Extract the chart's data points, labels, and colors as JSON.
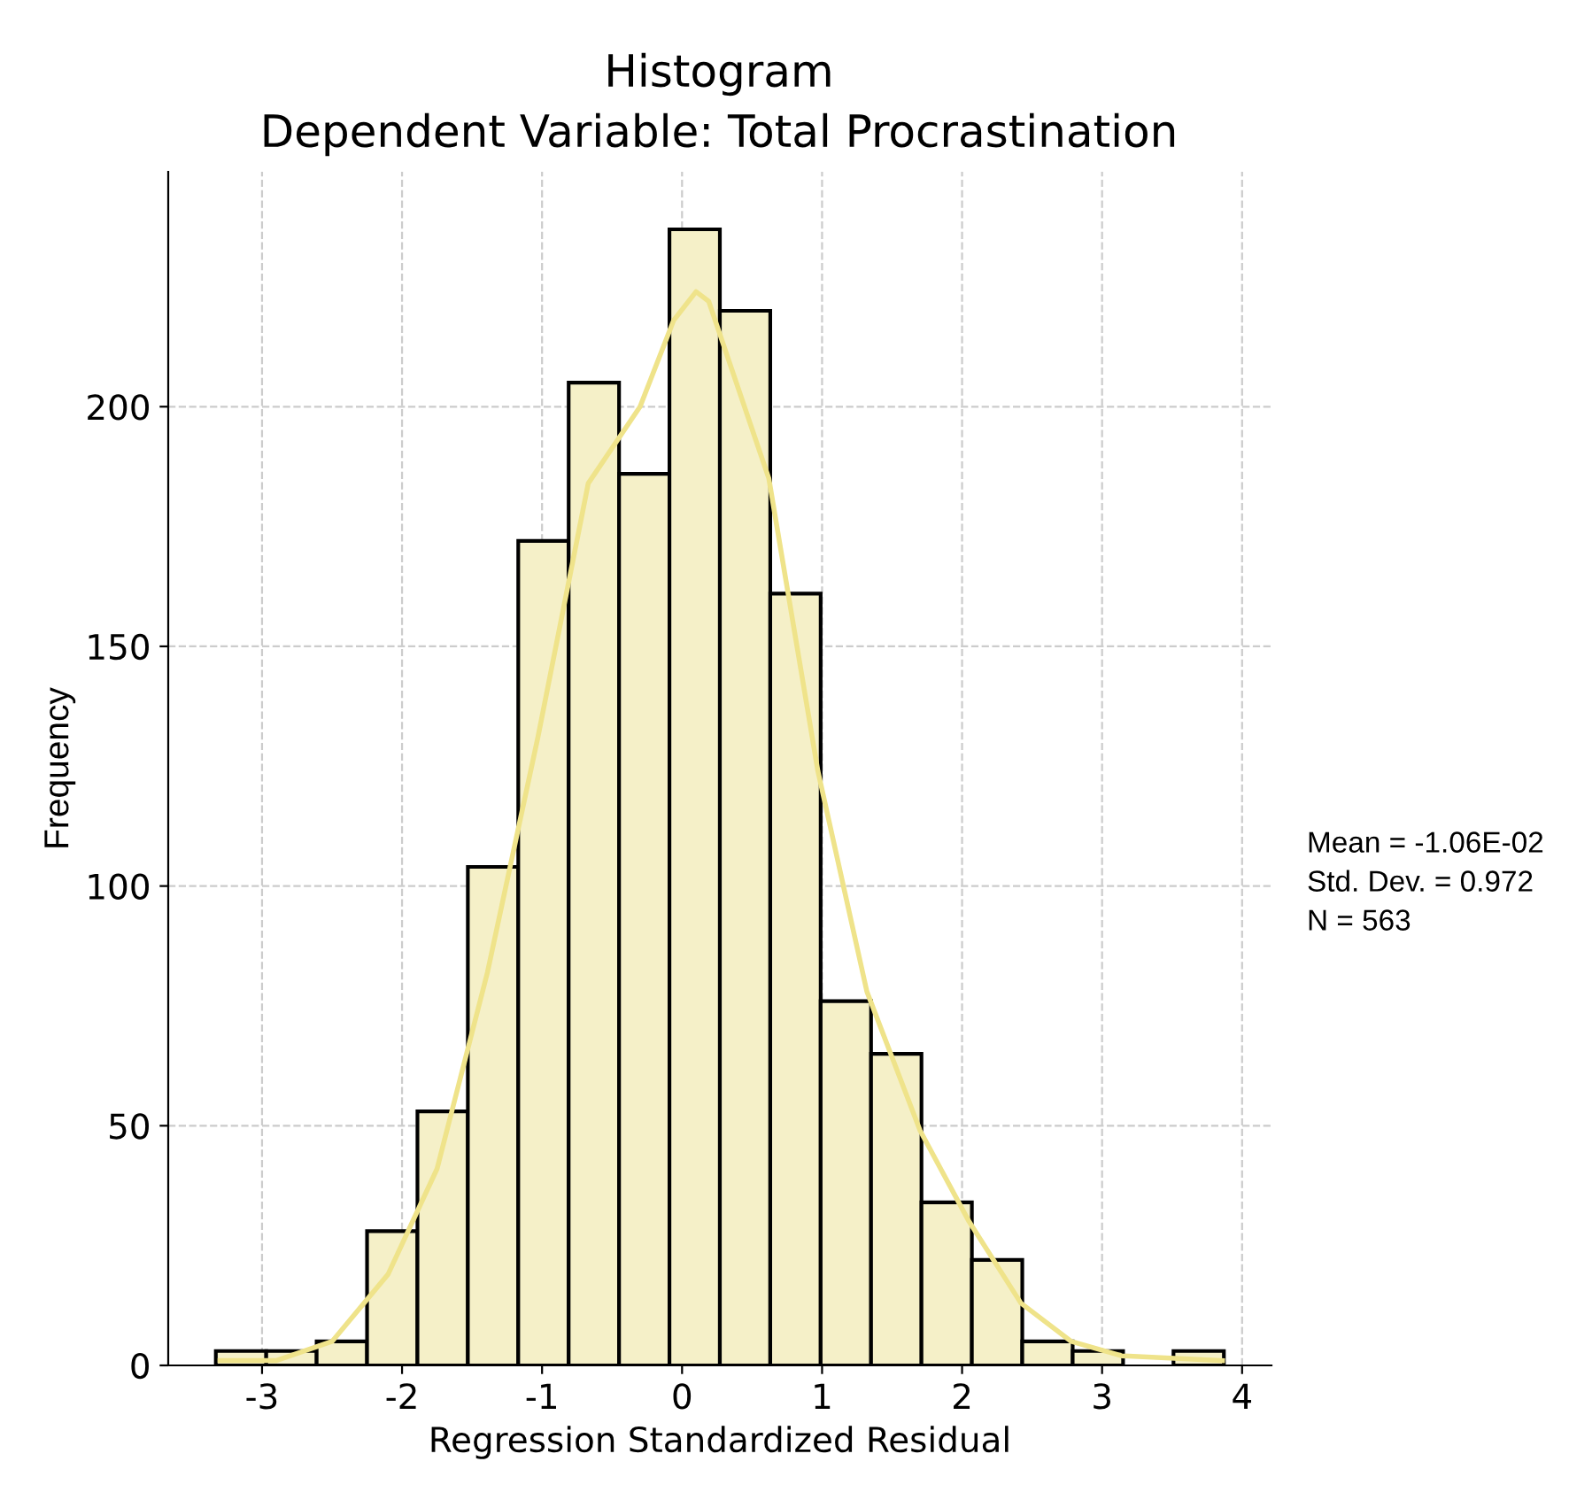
{
  "chart_data": {
    "type": "histogram",
    "title": "Histogram",
    "subtitle": "Dependent Variable: Total Procrastination",
    "xlabel": "Regression Standardized Residual",
    "ylabel": "Frequency",
    "series": [
      {
        "color": "#f5f0c8",
        "bins": [
          -3.33,
          -2.97,
          -2.61,
          -2.25,
          -1.89,
          -1.53,
          -1.17,
          -0.81,
          -0.45,
          -0.09,
          0.27,
          0.63,
          0.99,
          1.35,
          1.71,
          2.07,
          2.43,
          2.79,
          3.15,
          3.51,
          3.87
        ],
        "values": [
          3,
          3,
          5,
          28,
          53,
          104,
          172,
          205,
          186,
          237,
          220,
          161,
          76,
          65,
          34,
          22,
          5,
          3,
          0,
          3
        ]
      },
      {
        "type": "line",
        "color": "#efe38a",
        "x": [
          -3.3,
          -2.9,
          -2.5,
          -2.1,
          -1.75,
          -1.39,
          -1.03,
          -0.67,
          -0.3,
          -0.06,
          0.1,
          0.19,
          0.62,
          0.97,
          1.32,
          1.7,
          2.05,
          2.42,
          2.78,
          3.14,
          3.86
        ],
        "values": [
          1,
          1,
          5,
          19,
          41,
          82,
          131,
          184,
          200,
          218,
          224,
          222,
          185,
          124,
          78,
          49,
          30,
          13,
          5,
          2,
          1
        ]
      }
    ],
    "xlim": [
      -3.67,
      4.21
    ],
    "xticks": [
      -3,
      -2,
      -1,
      0,
      1,
      2,
      3,
      4
    ],
    "ylim": [
      0,
      249
    ],
    "yticks": [
      0,
      50,
      100,
      150,
      200
    ],
    "grid": true,
    "annotations": [
      "Mean = -1.06E-02",
      "Std. Dev. = 0.972",
      "N = 563"
    ]
  }
}
